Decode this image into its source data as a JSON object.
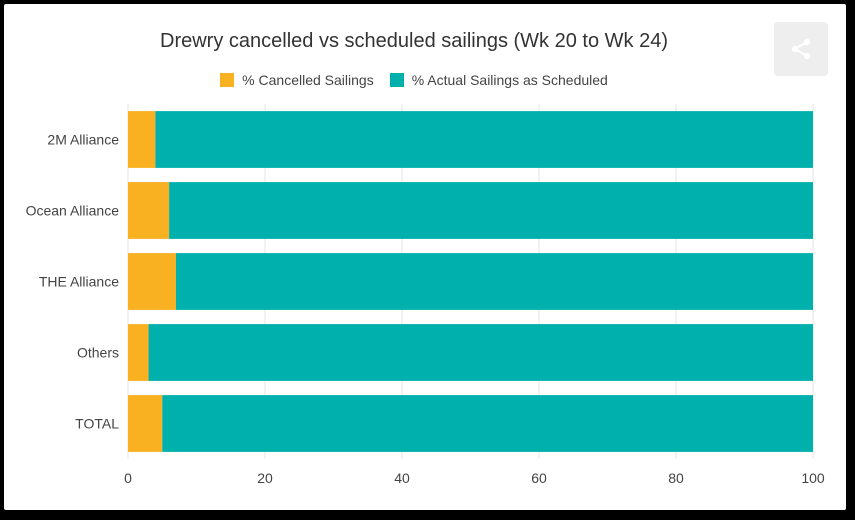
{
  "chart_data": {
    "type": "bar",
    "orientation": "horizontal",
    "stacked": true,
    "title": "Drewry cancelled vs scheduled sailings (Wk 20 to Wk 24)",
    "categories": [
      "2M Alliance",
      "Ocean Alliance",
      "THE Alliance",
      "Others",
      "TOTAL"
    ],
    "series": [
      {
        "name": "% Cancelled Sailings",
        "color": "#F9B122",
        "values": [
          4,
          6,
          7,
          3,
          5
        ]
      },
      {
        "name": "% Actual Sailings as Scheduled",
        "color": "#00B0AC",
        "values": [
          96,
          94,
          93,
          97,
          95
        ]
      }
    ],
    "xlim": [
      0,
      100
    ],
    "xticks": [
      "0",
      "20",
      "40",
      "60",
      "80",
      "100"
    ],
    "grid": true,
    "legend_position": "top"
  },
  "share_icon": "share-icon"
}
